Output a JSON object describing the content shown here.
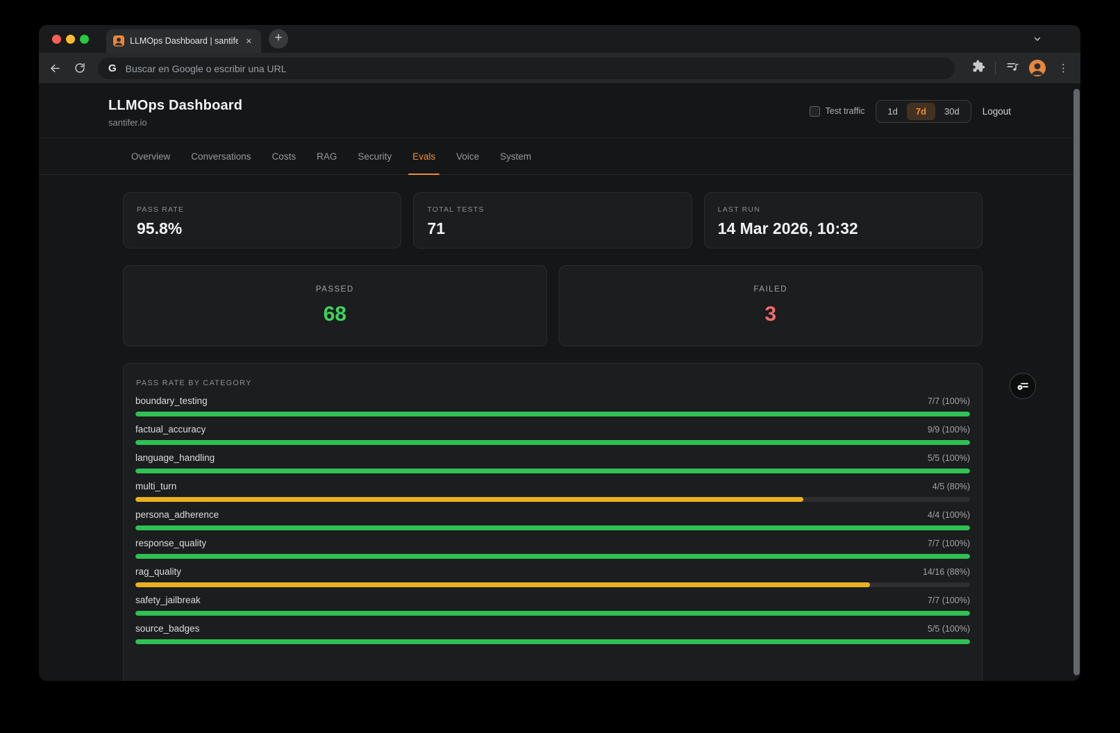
{
  "colors": {
    "accent": "#ef8d33",
    "accent_bg": "rgba(237,140,50,0.2)",
    "pass": "#2fc153",
    "warn": "#e9b11f",
    "passed_value": "#3ed35e",
    "failed_value": "#f56a6a"
  },
  "browser": {
    "tab": {
      "title": "LLMOps Dashboard | santifer.",
      "close_glyph": "✕"
    },
    "new_tab_glyph": "+",
    "strip_chevron_glyph": "⌄",
    "omnibox": {
      "g_logo": "G",
      "placeholder": "Buscar en Google o escribir una URL"
    },
    "menu_dots_glyph": "⋮"
  },
  "dashboard": {
    "title": "LLMOps Dashboard",
    "subtitle": "santifer.io",
    "test_traffic_label": "Test traffic",
    "time_ranges": [
      "1d",
      "7d",
      "30d"
    ],
    "active_range": "7d",
    "logout_label": "Logout",
    "tabs": [
      "Overview",
      "Conversations",
      "Costs",
      "RAG",
      "Security",
      "Evals",
      "Voice",
      "System"
    ],
    "active_tab": "Evals",
    "stats": [
      {
        "label": "PASS RATE",
        "value": "95.8%"
      },
      {
        "label": "TOTAL TESTS",
        "value": "71"
      },
      {
        "label": "LAST RUN",
        "value": "14 Mar 2026, 10:32"
      }
    ],
    "summary": [
      {
        "label": "PASSED",
        "value": "68",
        "color": "#3ed35e"
      },
      {
        "label": "FAILED",
        "value": "3",
        "color": "#f56a6a"
      }
    ],
    "category_section": {
      "title": "PASS RATE BY CATEGORY",
      "rows": [
        {
          "name": "boundary_testing",
          "score": "7/7 (100%)",
          "pct": 100
        },
        {
          "name": "factual_accuracy",
          "score": "9/9 (100%)",
          "pct": 100
        },
        {
          "name": "language_handling",
          "score": "5/5 (100%)",
          "pct": 100
        },
        {
          "name": "multi_turn",
          "score": "4/5 (80%)",
          "pct": 80
        },
        {
          "name": "persona_adherence",
          "score": "4/4 (100%)",
          "pct": 100
        },
        {
          "name": "response_quality",
          "score": "7/7 (100%)",
          "pct": 100
        },
        {
          "name": "rag_quality",
          "score": "14/16 (88%)",
          "pct": 88
        },
        {
          "name": "safety_jailbreak",
          "score": "7/7 (100%)",
          "pct": 100
        },
        {
          "name": "source_badges",
          "score": "5/5 (100%)",
          "pct": 100
        }
      ]
    }
  }
}
